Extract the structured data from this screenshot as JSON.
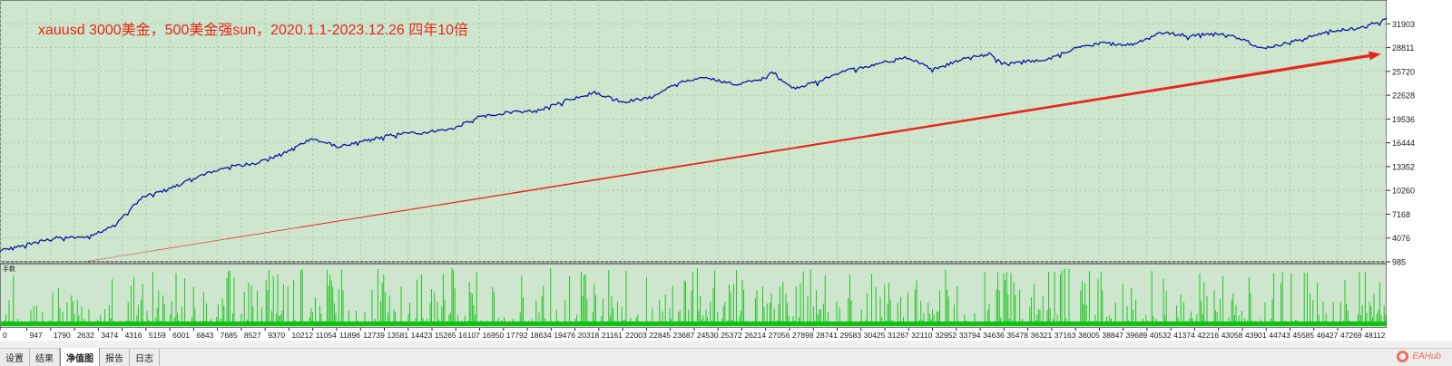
{
  "annotation": {
    "text": "xauusd  3000美金，500美金强sun，2020.1.1-2023.12.26  四年10倍",
    "color": "#e8251c"
  },
  "chart_data": {
    "type": "line",
    "series": [
      {
        "color": "#0a16a0",
        "x": [
          0,
          1000,
          2000,
          3000,
          4000,
          5000,
          6000,
          7000,
          8000,
          9000,
          10000,
          11000,
          12000,
          13000,
          14000,
          15000,
          16000,
          17000,
          18000,
          19000,
          20000,
          21000,
          22000,
          23000,
          24000,
          25000,
          26000,
          27000,
          27300,
          28000,
          29000,
          29800,
          31000,
          32000,
          33000,
          34000,
          35000,
          35400,
          36000,
          37000,
          38000,
          39000,
          40000,
          41000,
          42000,
          43000,
          44000,
          44500,
          45000,
          46000,
          47000,
          48000,
          48700,
          49000
        ],
        "y": [
          2400,
          3300,
          4100,
          4200,
          5600,
          9300,
          10500,
          12100,
          13300,
          13800,
          15000,
          17000,
          15900,
          16800,
          17600,
          17800,
          18300,
          19900,
          20400,
          20600,
          22000,
          23000,
          21800,
          22300,
          24300,
          24900,
          24000,
          24800,
          25700,
          23500,
          24500,
          25800,
          26600,
          27600,
          26000,
          27300,
          28000,
          26700,
          27000,
          27200,
          28800,
          29400,
          29200,
          30800,
          30400,
          30700,
          29900,
          28700,
          29000,
          29900,
          31000,
          31300,
          32200,
          32500
        ]
      }
    ],
    "secondary": {
      "name": "手数",
      "x_range": [
        0,
        49000
      ],
      "y_range": [
        0,
        1
      ],
      "base_level": 0.08,
      "color": "#13c013"
    },
    "arrow": {
      "color": "#e8251c",
      "x_from": 3000,
      "y_from": 1000,
      "x_to": 48800,
      "y_to": 28000
    },
    "xlim": [
      0,
      49000
    ],
    "ylim": [
      985,
      35000
    ],
    "y_ticks": [
      985,
      4076,
      7168,
      10260,
      13352,
      16444,
      19536,
      22628,
      25720,
      28811,
      31903
    ],
    "x_ticks": [
      0,
      947,
      1790,
      2632,
      3474,
      4316,
      5159,
      6001,
      6843,
      7685,
      8527,
      9370,
      10212,
      11054,
      11896,
      12739,
      13581,
      14423,
      15265,
      16107,
      16950,
      17792,
      18634,
      19476,
      20318,
      21161,
      22003,
      22845,
      23687,
      24530,
      25372,
      26214,
      27056,
      27898,
      28741,
      29583,
      30425,
      31267,
      32110,
      32952,
      33794,
      34636,
      35478,
      36321,
      37163,
      38005,
      38847,
      39689,
      40532,
      41374,
      42216,
      43058,
      43901,
      44743,
      45585,
      46427,
      47269,
      48112
    ],
    "grid": true,
    "colors": {
      "background": "#cde6cd",
      "panel_border": "#222222",
      "grid": "#9ec49e",
      "label": "#1a1a1a"
    }
  },
  "tabs": [
    "设置",
    "结果",
    "净值图",
    "报告",
    "日志"
  ],
  "active_tab": 2,
  "watermark": {
    "text": "EAHub"
  }
}
